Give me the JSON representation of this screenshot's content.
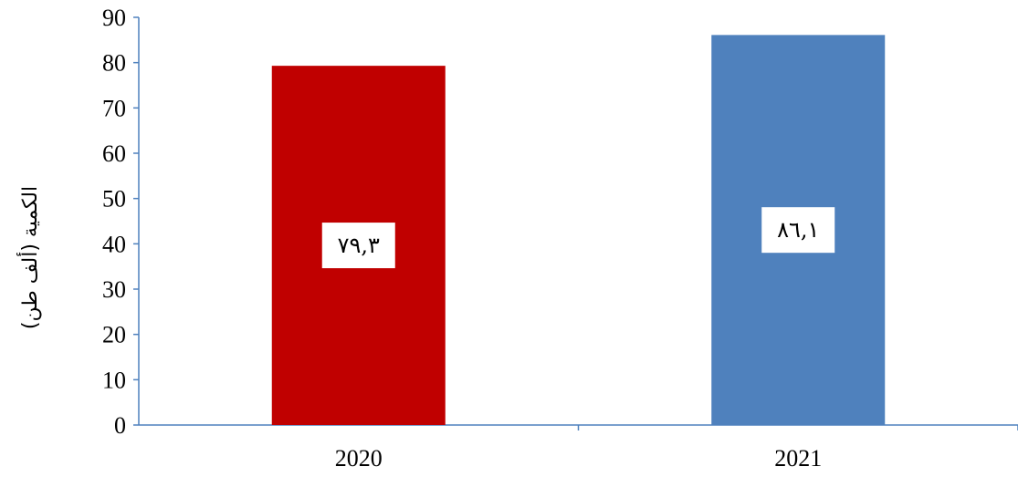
{
  "chart_data": {
    "type": "bar",
    "categories": [
      "2020",
      "2021"
    ],
    "values": [
      79.3,
      86.1
    ],
    "data_labels": [
      "٧٩,٣",
      "٨٦,١"
    ],
    "bar_colors": [
      "#c00000",
      "#4f81bd"
    ],
    "ylabel": "الكمية (ألف طن)",
    "ylim": [
      0,
      90
    ],
    "yticks": [
      "0",
      "10",
      "20",
      "30",
      "40",
      "50",
      "60",
      "70",
      "80",
      "90"
    ],
    "grid": false,
    "legend": "none",
    "axis_color": "#4f81bd"
  }
}
